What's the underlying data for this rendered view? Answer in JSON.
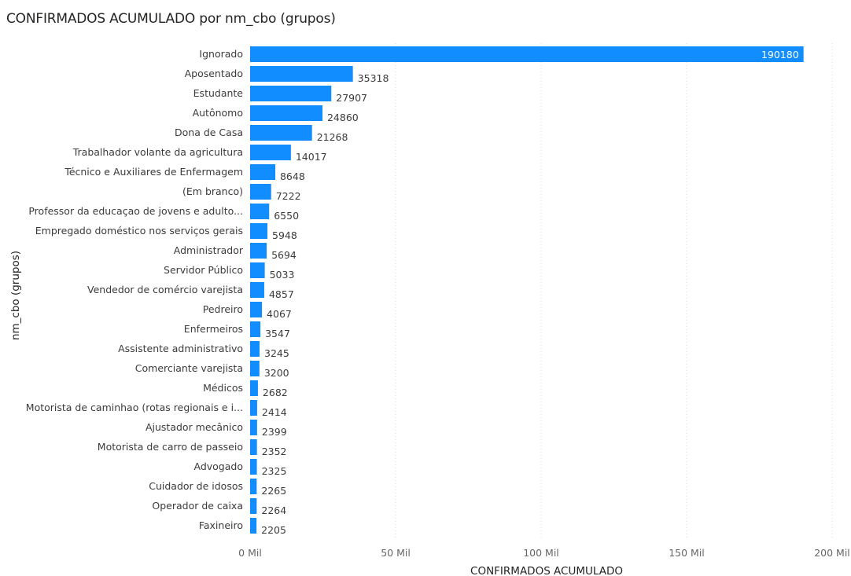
{
  "chart_data": {
    "type": "bar",
    "orientation": "horizontal",
    "title": "CONFIRMADOS ACUMULADO por nm_cbo (grupos)",
    "xlabel": "CONFIRMADOS ACUMULADO",
    "ylabel": "nm_cbo (grupos)",
    "xlim": [
      0,
      200000
    ],
    "xticks": [
      0,
      50000,
      100000,
      150000,
      200000
    ],
    "xtick_labels": [
      "0 Mil",
      "50 Mil",
      "100 Mil",
      "150 Mil",
      "200 Mil"
    ],
    "grid": "vertical dotted",
    "bar_color": "#118DFF",
    "categories": [
      "Ignorado",
      "Aposentado",
      "Estudante",
      "Autônomo",
      "Dona de Casa",
      "Trabalhador volante da agricultura",
      "Técnico e Auxiliares de Enfermagem",
      "(Em branco)",
      "Professor da educaçao de jovens e adulto...",
      "Empregado doméstico nos serviços gerais",
      "Administrador",
      "Servidor Público",
      "Vendedor de comércio varejista",
      "Pedreiro",
      "Enfermeiros",
      "Assistente administrativo",
      "Comerciante varejista",
      "Médicos",
      "Motorista de caminhao (rotas regionais e i...",
      "Ajustador mecânico",
      "Motorista de carro de passeio",
      "Advogado",
      "Cuidador de idosos",
      "Operador de caixa",
      "Faxineiro"
    ],
    "values": [
      190180,
      35318,
      27907,
      24860,
      21268,
      14017,
      8648,
      7222,
      6550,
      5948,
      5694,
      5033,
      4857,
      4067,
      3547,
      3245,
      3200,
      2682,
      2414,
      2399,
      2352,
      2325,
      2265,
      2264,
      2205
    ]
  }
}
